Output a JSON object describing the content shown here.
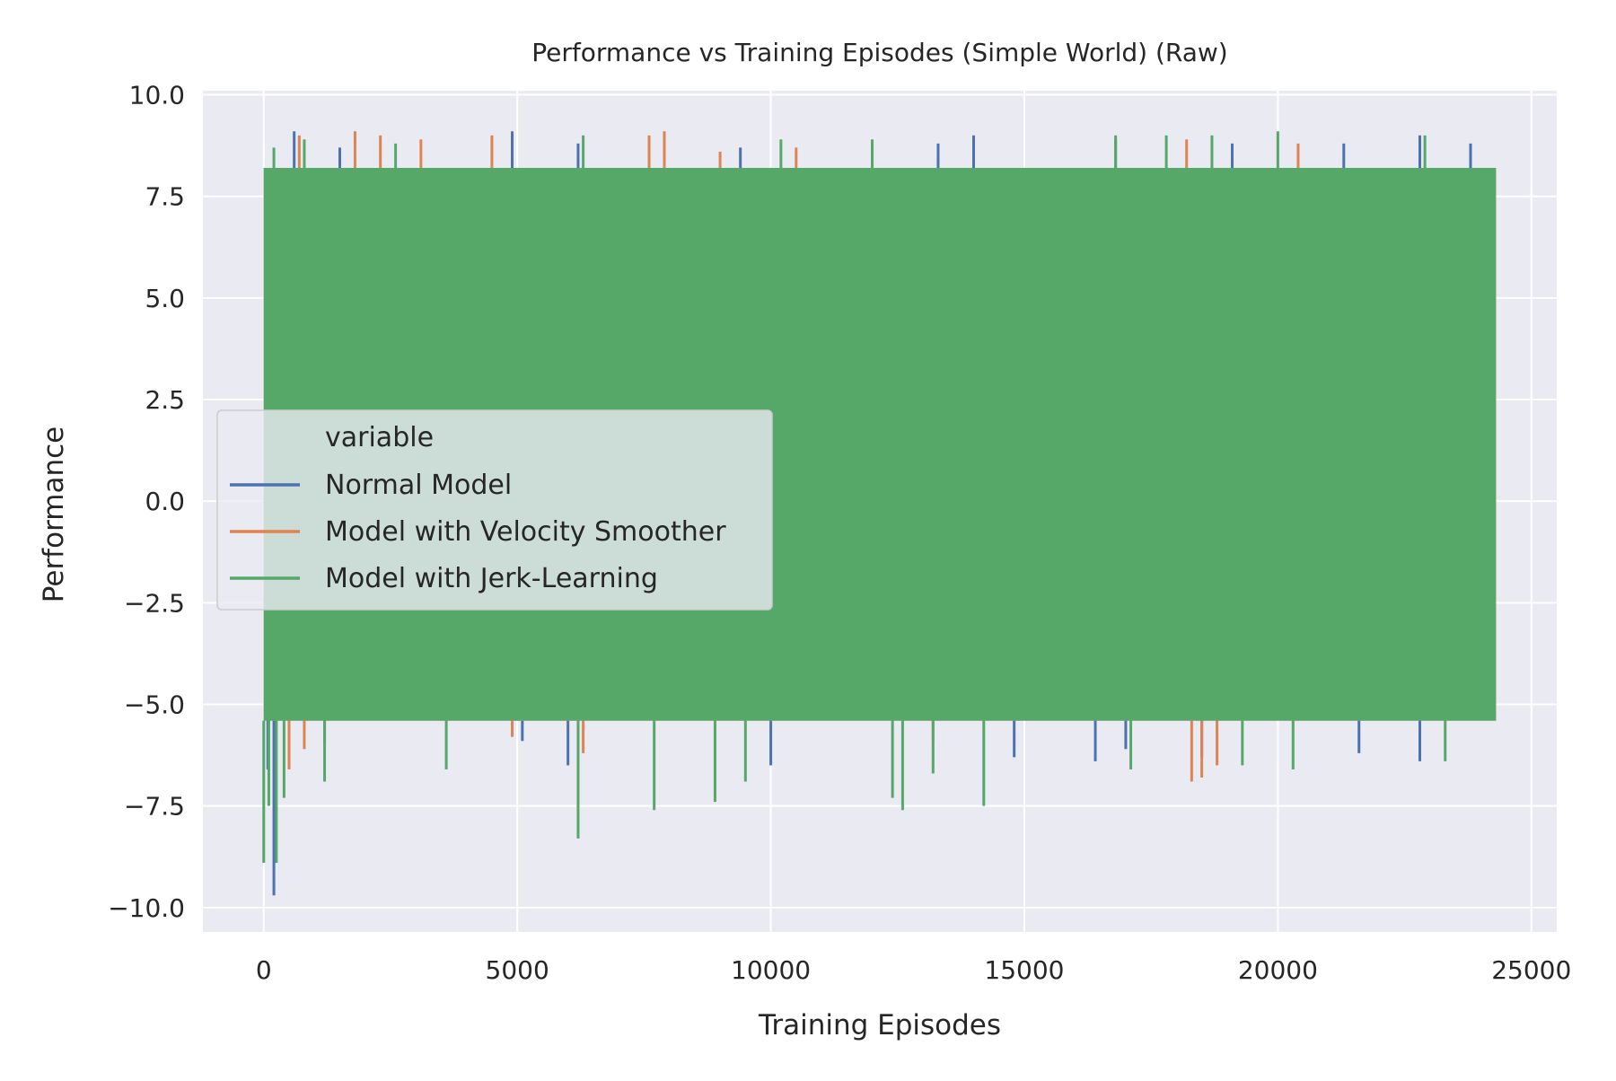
{
  "chart_data": {
    "type": "line",
    "title": "Performance vs Training Episodes (Simple World) (Raw)",
    "xlabel": "Training Episodes",
    "ylabel": "Performance",
    "xlim": [
      -1200,
      25500
    ],
    "ylim": [
      -10.6,
      10.1
    ],
    "xticks": [
      0,
      5000,
      10000,
      15000,
      20000,
      25000
    ],
    "xtick_labels": [
      "0",
      "5000",
      "10000",
      "15000",
      "20000",
      "25000"
    ],
    "yticks": [
      10.0,
      7.5,
      5.0,
      2.5,
      0.0,
      -2.5,
      -5.0,
      -7.5,
      -10.0
    ],
    "ytick_labels": [
      "10.0",
      "7.5",
      "5.0",
      "2.5",
      "0.0",
      "−2.5",
      "−5.0",
      "−7.5",
      "−10.0"
    ],
    "grid": true,
    "background": "#eaeaf2",
    "legend": {
      "title": "variable",
      "placement": "center-left"
    },
    "series": [
      {
        "name": "Normal Model",
        "color": "#4c72b0",
        "x_range": [
          0,
          24300
        ],
        "band_top": 8.2,
        "band_bottom": -5.4,
        "upper_spikes": [
          [
            600,
            9.1
          ],
          [
            1500,
            8.7
          ],
          [
            4900,
            9.1
          ],
          [
            6200,
            8.8
          ],
          [
            9400,
            8.7
          ],
          [
            13300,
            8.8
          ],
          [
            14000,
            9.0
          ],
          [
            16800,
            8.9
          ],
          [
            19100,
            8.8
          ],
          [
            21300,
            8.8
          ],
          [
            22800,
            9.0
          ],
          [
            23800,
            8.8
          ]
        ],
        "lower_spikes": [
          [
            80,
            -6.6
          ],
          [
            200,
            -9.7
          ],
          [
            1200,
            -6.0
          ],
          [
            5100,
            -5.9
          ],
          [
            6000,
            -6.5
          ],
          [
            10000,
            -6.5
          ],
          [
            14800,
            -6.3
          ],
          [
            16400,
            -6.4
          ],
          [
            17000,
            -6.1
          ],
          [
            18500,
            -6.3
          ],
          [
            21600,
            -6.2
          ],
          [
            22800,
            -6.4
          ]
        ]
      },
      {
        "name": "Model with Velocity Smoother",
        "color": "#dd8452",
        "x_range": [
          0,
          24300
        ],
        "band_top": 8.2,
        "band_bottom": -5.4,
        "upper_spikes": [
          [
            700,
            9.0
          ],
          [
            1800,
            9.1
          ],
          [
            2300,
            9.0
          ],
          [
            3100,
            8.9
          ],
          [
            4500,
            9.0
          ],
          [
            7600,
            9.0
          ],
          [
            7900,
            9.1
          ],
          [
            9000,
            8.6
          ],
          [
            10500,
            8.7
          ],
          [
            18200,
            8.9
          ],
          [
            20400,
            8.8
          ]
        ],
        "lower_spikes": [
          [
            500,
            -6.6
          ],
          [
            800,
            -6.1
          ],
          [
            4900,
            -5.8
          ],
          [
            6300,
            -6.2
          ],
          [
            13200,
            -5.9
          ],
          [
            18300,
            -6.9
          ],
          [
            18500,
            -6.8
          ],
          [
            18800,
            -6.5
          ]
        ]
      },
      {
        "name": "Model with Jerk-Learning",
        "color": "#55a868",
        "x_range": [
          0,
          24300
        ],
        "band_top": 8.2,
        "band_bottom": -5.4,
        "upper_spikes": [
          [
            200,
            8.7
          ],
          [
            800,
            8.9
          ],
          [
            2600,
            8.8
          ],
          [
            6300,
            9.0
          ],
          [
            10200,
            8.9
          ],
          [
            12000,
            8.9
          ],
          [
            16800,
            9.0
          ],
          [
            17800,
            9.0
          ],
          [
            18700,
            9.0
          ],
          [
            20000,
            9.1
          ],
          [
            22900,
            9.0
          ]
        ],
        "lower_spikes": [
          [
            0,
            -8.9
          ],
          [
            100,
            -7.5
          ],
          [
            250,
            -8.9
          ],
          [
            400,
            -7.3
          ],
          [
            1200,
            -6.9
          ],
          [
            3600,
            -6.6
          ],
          [
            6200,
            -8.3
          ],
          [
            7700,
            -7.6
          ],
          [
            8900,
            -7.4
          ],
          [
            9500,
            -6.9
          ],
          [
            12400,
            -7.3
          ],
          [
            12600,
            -7.6
          ],
          [
            13200,
            -6.7
          ],
          [
            14200,
            -7.5
          ],
          [
            17100,
            -6.6
          ],
          [
            19300,
            -6.5
          ],
          [
            20300,
            -6.6
          ],
          [
            23300,
            -6.4
          ]
        ]
      }
    ]
  }
}
